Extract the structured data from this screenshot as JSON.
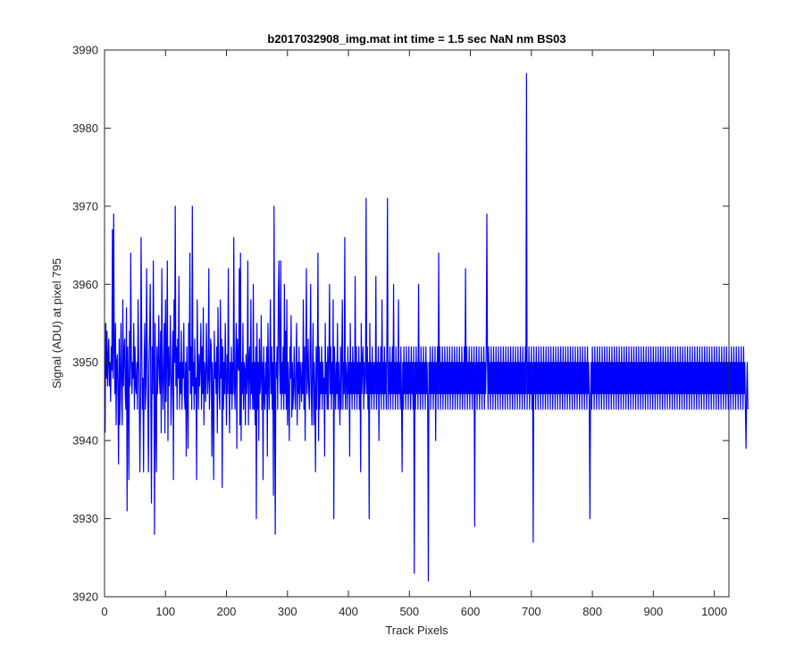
{
  "chart_data": {
    "type": "line",
    "title": "b2017032908_img.mat int time = 1.5 sec  NaN nm BS03",
    "xlabel": "Track Pixels",
    "ylabel": "Signal (ADU) at pixel 795",
    "xlim": [
      0,
      1024
    ],
    "ylim": [
      3920,
      3990
    ],
    "xticks": [
      0,
      100,
      200,
      300,
      400,
      500,
      600,
      700,
      800,
      900,
      1000
    ],
    "yticks": [
      3920,
      3930,
      3940,
      3950,
      3960,
      3970,
      3980,
      3990
    ],
    "grid": false,
    "line_color": "#0000ff",
    "series": [
      {
        "x_start": 1,
        "x_step": 1,
        "values": [
          3941,
          3955,
          3948,
          3954,
          3947,
          3951,
          3953,
          3947,
          3950,
          3945,
          3952,
          3949,
          3967,
          3948,
          3969,
          3952,
          3946,
          3955,
          3942,
          3950,
          3951,
          3946,
          3937,
          3953,
          3942,
          3949,
          3955,
          3945,
          3942,
          3958,
          3947,
          3951,
          3953,
          3946,
          3944,
          3957,
          3931,
          3952,
          3947,
          3935,
          3954,
          3947,
          3964,
          3951,
          3946,
          3950,
          3948,
          3955,
          3944,
          3952,
          3947,
          3946,
          3950,
          3944,
          3958,
          3951,
          3946,
          3936,
          3945,
          3966,
          3953,
          3944,
          3948,
          3936,
          3950,
          3955,
          3944,
          3947,
          3962,
          3951,
          3945,
          3936,
          3950,
          3954,
          3960,
          3944,
          3932,
          3952,
          3946,
          3963,
          3950,
          3928,
          3955,
          3943,
          3936,
          3952,
          3946,
          3950,
          3956,
          3948,
          3946,
          3954,
          3941,
          3962,
          3948,
          3944,
          3950,
          3955,
          3941,
          3958,
          3945,
          3951,
          3963,
          3940,
          3952,
          3947,
          3949,
          3956,
          3942,
          3946,
          3950,
          3954,
          3935,
          3958,
          3950,
          3970,
          3947,
          3952,
          3944,
          3953,
          3948,
          3961,
          3944,
          3950,
          3946,
          3954,
          3944,
          3950,
          3948,
          3955,
          3946,
          3944,
          3950,
          3938,
          3952,
          3946,
          3939,
          3955,
          3949,
          3964,
          3946,
          3952,
          3944,
          3970,
          3947,
          3950,
          3944,
          3953,
          3946,
          3948,
          3935,
          3958,
          3950,
          3944,
          3951,
          3947,
          3950,
          3955,
          3944,
          3952,
          3946,
          3957,
          3942,
          3950,
          3948,
          3945,
          3955,
          3950,
          3946,
          3948,
          3962,
          3944,
          3948,
          3953,
          3952,
          3938,
          3950,
          3946,
          3935,
          3954,
          3948,
          3950,
          3946,
          3952,
          3941,
          3957,
          3950,
          3946,
          3944,
          3958,
          3948,
          3953,
          3934,
          3952,
          3944,
          3950,
          3946,
          3955,
          3948,
          3942,
          3951,
          3946,
          3962,
          3948,
          3941,
          3950,
          3946,
          3952,
          3944,
          3950,
          3946,
          3966,
          3948,
          3944,
          3950,
          3955,
          3939,
          3953,
          3950,
          3949,
          3962,
          3942,
          3964,
          3940,
          3950,
          3946,
          3955,
          3944,
          3950,
          3949,
          3942,
          3951,
          3946,
          3948,
          3963,
          3942,
          3950,
          3952,
          3944,
          3958,
          3946,
          3950,
          3944,
          3960,
          3944,
          3950,
          3942,
          3952,
          3930,
          3955,
          3944,
          3950,
          3940,
          3953,
          3946,
          3948,
          3956,
          3944,
          3950,
          3935,
          3952,
          3946,
          3944,
          3950,
          3946,
          3952,
          3938,
          3955,
          3948,
          3944,
          3950,
          3958,
          3946,
          3952,
          3944,
          3950,
          3933,
          3970,
          3946,
          3928,
          3950,
          3948,
          3952,
          3944,
          3958,
          3963,
          3950,
          3946,
          3963,
          3944,
          3950,
          3946,
          3952,
          3944,
          3960,
          3946,
          3954,
          3944,
          3958,
          3942,
          3950,
          3946,
          3940,
          3952,
          3948,
          3956,
          3943,
          3950,
          3944,
          3947,
          3952,
          3946,
          3944,
          3950,
          3955,
          3942,
          3950,
          3946,
          3952,
          3944,
          3950,
          3948,
          3945,
          3950,
          3946,
          3958,
          3944,
          3952,
          3940,
          3950,
          3962,
          3946,
          3948,
          3953,
          3946,
          3944,
          3950,
          3960,
          3946,
          3942,
          3950,
          3955,
          3942,
          3950,
          3946,
          3936,
          3952,
          3944,
          3950,
          3964,
          3940,
          3952,
          3944,
          3950,
          3946,
          3952,
          3944,
          3950,
          3946,
          3948,
          3938,
          3955,
          3946,
          3950,
          3944,
          3952,
          3944,
          3950,
          3960,
          3946,
          3952,
          3944,
          3950,
          3946,
          3958,
          3930,
          3952,
          3948,
          3944,
          3950,
          3946,
          3955,
          3944,
          3950,
          3946,
          3942,
          3952,
          3944,
          3950,
          3958,
          3944,
          3950,
          3946,
          3966,
          3944,
          3950,
          3948,
          3944,
          3952,
          3946,
          3950,
          3938,
          3955,
          3946,
          3950,
          3944,
          3952,
          3946,
          3950,
          3944,
          3961,
          3946,
          3952,
          3944,
          3950,
          3946,
          3952,
          3944,
          3950,
          3936,
          3955,
          3946,
          3950,
          3952,
          3944,
          3950,
          3946,
          3948,
          3971,
          3946,
          3952,
          3944,
          3950,
          3930,
          3955,
          3946,
          3950,
          3944,
          3952,
          3946,
          3950,
          3944,
          3950,
          3946,
          3961,
          3944,
          3950,
          3946,
          3952,
          3940,
          3950,
          3946,
          3952,
          3944,
          3958,
          3946,
          3950,
          3944,
          3952,
          3946,
          3950,
          3944,
          3952,
          3971,
          3944,
          3950,
          3946,
          3952,
          3944,
          3950,
          3946,
          3952,
          3944,
          3960,
          3946,
          3950,
          3944,
          3952,
          3946,
          3950,
          3944,
          3958,
          3946,
          3950,
          3944,
          3952,
          3946,
          3936,
          3950,
          3944,
          3952,
          3946,
          3950,
          3944,
          3952,
          3946,
          3950,
          3944,
          3952,
          3946,
          3950,
          3944,
          3952,
          3946,
          3950,
          3944,
          3952,
          3923,
          3950,
          3944,
          3952,
          3946,
          3950,
          3944,
          3960,
          3946,
          3950,
          3944,
          3952,
          3946,
          3950,
          3944,
          3952,
          3946,
          3950,
          3944,
          3952,
          3946,
          3950,
          3944,
          3922,
          3950,
          3946,
          3952,
          3944,
          3950,
          3946,
          3952,
          3944,
          3950,
          3946,
          3952,
          3940,
          3950,
          3946,
          3952,
          3944,
          3964,
          3946,
          3952,
          3944,
          3950,
          3946,
          3952,
          3944,
          3950,
          3946,
          3952,
          3944,
          3950,
          3946,
          3952,
          3944,
          3950,
          3946,
          3952,
          3944,
          3950,
          3946,
          3952,
          3944,
          3950,
          3946,
          3952,
          3944,
          3950,
          3946,
          3952,
          3944,
          3950,
          3946,
          3952,
          3944,
          3950,
          3946,
          3952,
          3944,
          3950,
          3946,
          3952,
          3944,
          3962,
          3946,
          3952,
          3944,
          3950,
          3946,
          3952,
          3944,
          3950,
          3946,
          3952,
          3944,
          3950,
          3946,
          3952,
          3929,
          3950,
          3946,
          3952,
          3944,
          3950,
          3946,
          3952,
          3944,
          3950,
          3946,
          3952,
          3944,
          3950,
          3946,
          3952,
          3944,
          3950,
          3946,
          3952,
          3969,
          3950,
          3944,
          3952,
          3946,
          3950,
          3944,
          3952,
          3946,
          3950,
          3944,
          3952,
          3946,
          3950,
          3944,
          3952,
          3946,
          3950,
          3944,
          3952,
          3946,
          3950,
          3944,
          3952,
          3946,
          3950,
          3944,
          3952,
          3946,
          3950,
          3944,
          3952,
          3946,
          3950,
          3944,
          3952,
          3946,
          3950,
          3944,
          3952,
          3946,
          3950,
          3944,
          3952,
          3946,
          3950,
          3944,
          3952,
          3946,
          3950,
          3944,
          3952,
          3946,
          3950,
          3944,
          3952,
          3946,
          3950,
          3944,
          3952,
          3946,
          3950,
          3944,
          3952,
          3946,
          3987,
          3944,
          3950,
          3946,
          3952,
          3944,
          3950,
          3946,
          3952,
          3944,
          3950,
          3927,
          3952,
          3946,
          3950,
          3944,
          3952,
          3946,
          3950,
          3944,
          3952,
          3946,
          3950,
          3944,
          3952,
          3946,
          3950,
          3944,
          3952,
          3946,
          3950,
          3944,
          3952,
          3946,
          3950,
          3944,
          3952,
          3946,
          3950,
          3944,
          3952,
          3946,
          3950,
          3944,
          3952,
          3946,
          3950,
          3944,
          3952,
          3946,
          3950,
          3944,
          3952,
          3946,
          3950,
          3944,
          3952,
          3946,
          3950,
          3944,
          3952,
          3946,
          3950,
          3944,
          3952,
          3946,
          3950,
          3944,
          3952,
          3946,
          3950,
          3944,
          3952,
          3946,
          3950,
          3944,
          3952,
          3946,
          3950,
          3944,
          3952,
          3946,
          3950,
          3944,
          3952,
          3946,
          3950,
          3944,
          3952,
          3946,
          3950,
          3944,
          3952,
          3946,
          3950,
          3944,
          3952,
          3946,
          3950,
          3944,
          3952,
          3946,
          3950,
          3944,
          3930,
          3946,
          3950,
          3944,
          3952,
          3946,
          3950,
          3944,
          3952,
          3946,
          3950,
          3944,
          3952,
          3946,
          3950,
          3944,
          3952,
          3946,
          3950,
          3944,
          3952,
          3946,
          3950,
          3944,
          3952,
          3946,
          3950,
          3944,
          3952,
          3946,
          3950,
          3944,
          3952,
          3946,
          3950,
          3944,
          3952,
          3946,
          3950,
          3944,
          3952,
          3946,
          3950,
          3944,
          3952,
          3946,
          3950,
          3944,
          3952,
          3946,
          3950,
          3944,
          3952,
          3946,
          3950,
          3944,
          3952,
          3946,
          3950,
          3944,
          3952,
          3946,
          3950,
          3944,
          3952,
          3946,
          3950,
          3944,
          3952,
          3946,
          3950,
          3944,
          3952,
          3946,
          3950,
          3944,
          3952,
          3946,
          3950,
          3944,
          3952,
          3946,
          3950,
          3944,
          3952,
          3946,
          3950,
          3944,
          3952,
          3946,
          3950,
          3944,
          3952,
          3946,
          3950,
          3944,
          3952,
          3946,
          3950,
          3944,
          3952,
          3946,
          3950,
          3944,
          3952,
          3946,
          3950,
          3944,
          3952,
          3946,
          3950,
          3944,
          3952,
          3946,
          3950,
          3944,
          3952,
          3946,
          3950,
          3944,
          3952,
          3946,
          3950,
          3944,
          3952,
          3946,
          3950,
          3944,
          3952,
          3946,
          3950,
          3944,
          3952,
          3946,
          3950,
          3944,
          3952,
          3946,
          3950,
          3944,
          3952,
          3946,
          3950,
          3944,
          3952,
          3946,
          3950,
          3944,
          3952,
          3946,
          3950,
          3944,
          3952,
          3946,
          3950,
          3944,
          3952,
          3946,
          3950,
          3944,
          3952,
          3946,
          3950,
          3944,
          3952,
          3946,
          3950,
          3944,
          3952,
          3946,
          3950,
          3944,
          3952,
          3946,
          3950,
          3944,
          3952,
          3946,
          3950,
          3944,
          3952,
          3946,
          3950,
          3944,
          3952,
          3946,
          3950,
          3944,
          3952,
          3946,
          3950,
          3944,
          3952,
          3946,
          3950,
          3944,
          3952,
          3946,
          3950,
          3944,
          3952,
          3946,
          3950,
          3944,
          3952,
          3946,
          3950,
          3944,
          3952,
          3946,
          3950,
          3944,
          3952,
          3946,
          3950,
          3944,
          3952,
          3946,
          3950,
          3944,
          3952,
          3946,
          3950,
          3944,
          3952,
          3946,
          3950,
          3944,
          3952,
          3946,
          3950,
          3944,
          3952,
          3946,
          3950,
          3944,
          3952,
          3946,
          3950,
          3944,
          3952,
          3946,
          3950,
          3944,
          3952,
          3946,
          3950,
          3944,
          3952,
          3946,
          3950,
          3944,
          3952,
          3946,
          3950,
          3944,
          3939,
          3946,
          3950,
          3944
        ]
      }
    ]
  }
}
